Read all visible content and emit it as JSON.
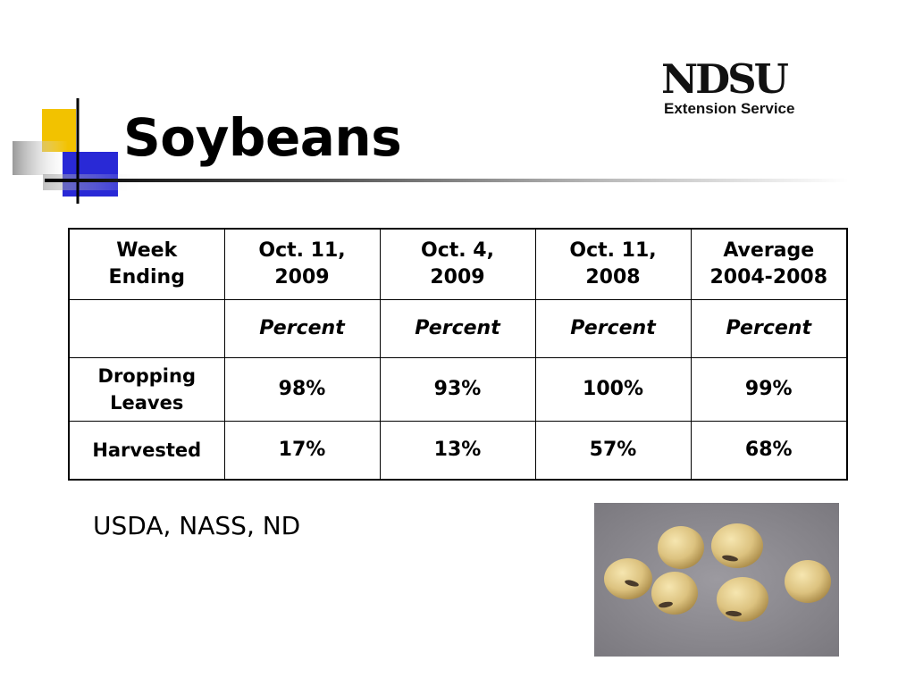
{
  "slide": {
    "title": "Soybeans",
    "logo": {
      "main": "NDSU",
      "sub": "Extension Service"
    },
    "source": "USDA, NASS, ND",
    "photo": {
      "icon": "soybeans-photo"
    }
  },
  "table": {
    "headers": [
      "Week\nEnding",
      "Oct. 11,\n2009",
      "Oct. 4,\n2009",
      "Oct. 11,\n2008",
      "Average\n2004-2008"
    ],
    "units": [
      "",
      "Percent",
      "Percent",
      "Percent",
      "Percent"
    ],
    "rows": [
      {
        "label": "Dropping\nLeaves",
        "values": [
          "98%",
          "93%",
          "100%",
          "99%"
        ]
      },
      {
        "label": "Harvested",
        "values": [
          "17%",
          "13%",
          "57%",
          "68%"
        ]
      }
    ]
  },
  "colors": {
    "accent_yellow": "#f2c200",
    "accent_blue": "#2929d6",
    "text": "#000000"
  }
}
